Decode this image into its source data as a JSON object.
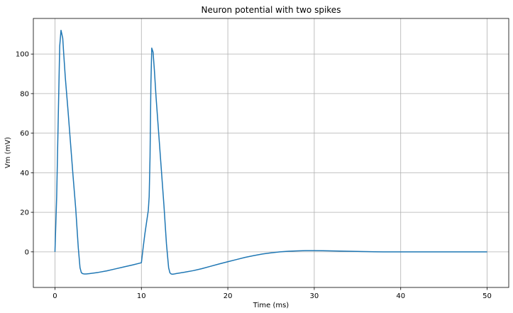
{
  "chart_data": {
    "type": "line",
    "title": "Neuron potential with two spikes",
    "xlabel": "Time (ms)",
    "ylabel": "Vm (mV)",
    "xlim": [
      -2.5,
      52.5
    ],
    "ylim": [
      -18,
      118
    ],
    "xticks": [
      0,
      10,
      20,
      30,
      40,
      50
    ],
    "yticks": [
      0,
      20,
      40,
      60,
      80,
      100
    ],
    "grid": true,
    "series": [
      {
        "color": "#1f77b4",
        "x": [
          0,
          0.2,
          0.4,
          0.55,
          0.7,
          0.9,
          1.0,
          1.2,
          1.5,
          1.8,
          2.1,
          2.4,
          2.7,
          2.9,
          3.05,
          3.2,
          3.4,
          3.6,
          4.0,
          5,
          6,
          7,
          8,
          9,
          10,
          10.2,
          10.4,
          10.6,
          10.8,
          10.9,
          11.0,
          11.1,
          11.2,
          11.35,
          11.5,
          11.7,
          12.0,
          12.3,
          12.6,
          12.9,
          13.15,
          13.3,
          13.45,
          13.6,
          13.8,
          14.0,
          15,
          16,
          17,
          18,
          19,
          20,
          21,
          22,
          23,
          24,
          25,
          26,
          27,
          28,
          29,
          30,
          31,
          32,
          33,
          34,
          35,
          36,
          37,
          38,
          39,
          40,
          42,
          44,
          46,
          48,
          50
        ],
        "y": [
          0,
          28,
          72,
          104,
          112,
          108,
          101,
          88,
          72,
          55,
          38,
          22,
          2,
          -8,
          -10.5,
          -11,
          -11.2,
          -11.2,
          -11,
          -10.4,
          -9.6,
          -8.6,
          -7.6,
          -6.6,
          -5.5,
          2,
          9,
          15,
          21,
          28,
          48,
          85,
          103,
          101,
          92,
          78,
          60,
          42,
          24,
          4,
          -8,
          -10.6,
          -11.2,
          -11.3,
          -11.2,
          -11,
          -10.3,
          -9.5,
          -8.5,
          -7.3,
          -6.1,
          -5,
          -3.9,
          -2.8,
          -1.9,
          -1.1,
          -0.5,
          0,
          0.3,
          0.5,
          0.6,
          0.6,
          0.55,
          0.5,
          0.4,
          0.3,
          0.2,
          0.1,
          0.05,
          0,
          0,
          0,
          0,
          0,
          0,
          0,
          0
        ]
      }
    ]
  }
}
